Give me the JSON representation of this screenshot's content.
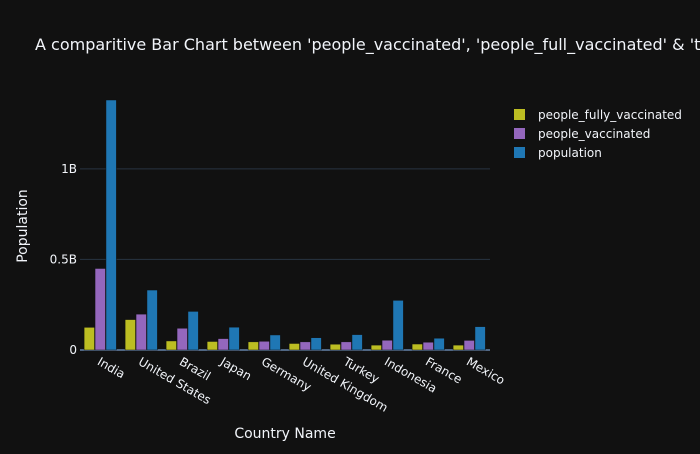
{
  "chart_data": {
    "type": "bar",
    "title": "A comparitive Bar Chart between 'people_vaccinated', 'people_full_vaccinated' & 'total_population'",
    "xlabel": "Country Name",
    "ylabel": "Population",
    "categories": [
      "India",
      "United States",
      "Brazil",
      "Japan",
      "Germany",
      "United Kingdom",
      "Turkey",
      "Indonesia",
      "France",
      "Mexico"
    ],
    "series": [
      {
        "name": "people_fully_vaccinated",
        "color": "#bcbd22",
        "values": [
          125000000,
          168000000,
          50000000,
          47000000,
          45000000,
          36000000,
          32000000,
          27000000,
          33000000,
          27000000
        ]
      },
      {
        "name": "people_vaccinated",
        "color": "#9467bd",
        "values": [
          450000000,
          198000000,
          120000000,
          63000000,
          48000000,
          45000000,
          45000000,
          54000000,
          43000000,
          53000000
        ]
      },
      {
        "name": "population",
        "color": "#1f77b4",
        "values": [
          1380000000,
          331000000,
          213000000,
          126000000,
          83000000,
          68000000,
          85000000,
          274000000,
          65000000,
          129000000
        ]
      }
    ],
    "ylim": [
      0,
      1380000000
    ],
    "yticks": [
      0,
      500000000,
      1000000000
    ],
    "ytick_labels": [
      "0",
      "0.5B",
      "1B"
    ],
    "grid": true,
    "legend_position": "top-right"
  }
}
